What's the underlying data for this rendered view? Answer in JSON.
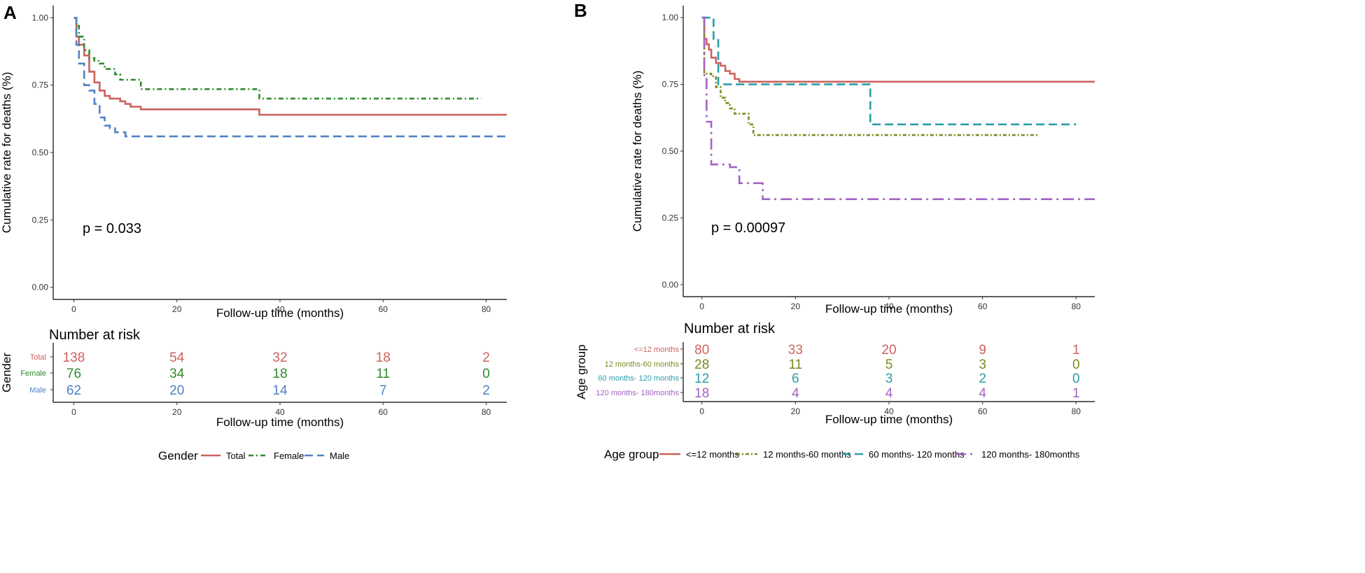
{
  "chart_data": [
    {
      "type": "line",
      "panel": "A",
      "ylabel": "Cumulative rate for deaths (%)",
      "xlabel": "Follow-up time (months)",
      "xlim": [
        -4,
        84
      ],
      "ylim": [
        -0.045,
        1.045
      ],
      "xticks": [
        0,
        20,
        40,
        60,
        80
      ],
      "yticks": [
        0.0,
        0.25,
        0.5,
        0.75,
        1.0
      ],
      "ytick_labels": [
        "0.00",
        "0.25",
        "0.50",
        "0.75",
        "1.00"
      ],
      "pvalue": "p = 0.033",
      "legend_title": "Gender",
      "series": [
        {
          "name": "Total",
          "color": "#cc625e",
          "dash": "",
          "points": [
            [
              0,
              1.0
            ],
            [
              0.5,
              0.93
            ],
            [
              1,
              0.9
            ],
            [
              2,
              0.86
            ],
            [
              3,
              0.8
            ],
            [
              4,
              0.76
            ],
            [
              5,
              0.73
            ],
            [
              6,
              0.71
            ],
            [
              7,
              0.7
            ],
            [
              9,
              0.69
            ],
            [
              10,
              0.68
            ],
            [
              11,
              0.67
            ],
            [
              13,
              0.66
            ],
            [
              36,
              0.64
            ],
            [
              84,
              0.64
            ]
          ]
        },
        {
          "name": "Female",
          "color": "#2e8b2e",
          "dash": "7,4,2,4",
          "points": [
            [
              0,
              1.0
            ],
            [
              0.5,
              0.97
            ],
            [
              1,
              0.93
            ],
            [
              2,
              0.88
            ],
            [
              3,
              0.85
            ],
            [
              4,
              0.84
            ],
            [
              5,
              0.83
            ],
            [
              6,
              0.81
            ],
            [
              8,
              0.79
            ],
            [
              9,
              0.77
            ],
            [
              13,
              0.735
            ],
            [
              36,
              0.7
            ],
            [
              79,
              0.7
            ]
          ]
        },
        {
          "name": "Male",
          "color": "#4f82c4",
          "dash": "12,6",
          "points": [
            [
              0,
              1.0
            ],
            [
              0.5,
              0.9
            ],
            [
              1,
              0.83
            ],
            [
              2,
              0.75
            ],
            [
              3,
              0.73
            ],
            [
              4,
              0.68
            ],
            [
              5,
              0.63
            ],
            [
              6,
              0.6
            ],
            [
              7,
              0.59
            ],
            [
              8,
              0.575
            ],
            [
              10,
              0.56
            ],
            [
              84,
              0.56
            ]
          ]
        }
      ],
      "risk_table": {
        "heading": "Number at risk",
        "ylabel": "Gender",
        "xlabel": "Follow-up time (months)",
        "times": [
          0,
          20,
          40,
          60,
          80
        ],
        "rows": [
          {
            "label": "Total",
            "color": "#cc625e",
            "values": [
              "138",
              "54",
              "32",
              "18",
              "2"
            ]
          },
          {
            "label": "Female",
            "color": "#2e8b2e",
            "values": [
              "76",
              "34",
              "18",
              "11",
              "0"
            ]
          },
          {
            "label": "Male",
            "color": "#4f82c4",
            "values": [
              "62",
              "20",
              "14",
              "7",
              "2"
            ]
          }
        ]
      }
    },
    {
      "type": "line",
      "panel": "B",
      "ylabel": "Cumulative rate for deaths (%)",
      "xlabel": "Follow-up time (months)",
      "xlim": [
        -4,
        84
      ],
      "ylim": [
        -0.045,
        1.045
      ],
      "xticks": [
        0,
        20,
        40,
        60,
        80
      ],
      "yticks": [
        0.0,
        0.25,
        0.5,
        0.75,
        1.0
      ],
      "ytick_labels": [
        "0.00",
        "0.25",
        "0.50",
        "0.75",
        "1.00"
      ],
      "pvalue": "p = 0.00097",
      "legend_title": "Age group",
      "series": [
        {
          "name": "<=12 months",
          "color": "#cc625e",
          "dash": "",
          "points": [
            [
              0,
              1.0
            ],
            [
              0.5,
              0.92
            ],
            [
              1,
              0.9
            ],
            [
              1.5,
              0.88
            ],
            [
              2,
              0.85
            ],
            [
              3,
              0.83
            ],
            [
              4,
              0.82
            ],
            [
              5,
              0.8
            ],
            [
              6,
              0.79
            ],
            [
              7,
              0.77
            ],
            [
              8,
              0.76
            ],
            [
              84,
              0.76
            ]
          ]
        },
        {
          "name": "12 months-60 months",
          "color": "#7a8a1e",
          "dash": "5,3,2,3",
          "points": [
            [
              0,
              1.0
            ],
            [
              0.5,
              0.79
            ],
            [
              2,
              0.78
            ],
            [
              3,
              0.74
            ],
            [
              4,
              0.7
            ],
            [
              5,
              0.68
            ],
            [
              6,
              0.66
            ],
            [
              7,
              0.64
            ],
            [
              10,
              0.6
            ],
            [
              11,
              0.56
            ],
            [
              72,
              0.56
            ]
          ]
        },
        {
          "name": "60 months- 120 months",
          "color": "#2a9dab",
          "dash": "12,6",
          "points": [
            [
              0,
              1.0
            ],
            [
              2,
              1.0
            ],
            [
              2.5,
              0.92
            ],
            [
              3.5,
              0.75
            ],
            [
              36,
              0.6
            ],
            [
              80,
              0.6
            ]
          ]
        },
        {
          "name": "120 months- 180months",
          "color": "#a263c4",
          "dash": "16,6,3,6",
          "points": [
            [
              0,
              1.0
            ],
            [
              0.5,
              0.78
            ],
            [
              1,
              0.61
            ],
            [
              2,
              0.45
            ],
            [
              6,
              0.44
            ],
            [
              8,
              0.38
            ],
            [
              13,
              0.32
            ],
            [
              84,
              0.32
            ]
          ]
        }
      ],
      "risk_table": {
        "heading": "Number at risk",
        "ylabel": "Age group",
        "xlabel": "Follow-up time (months)",
        "times": [
          0,
          20,
          40,
          60,
          80
        ],
        "rows": [
          {
            "label": "<=12 months",
            "color": "#cc625e",
            "values": [
              "80",
              "33",
              "20",
              "9",
              "1"
            ]
          },
          {
            "label": "12 months-60 months",
            "color": "#7a8a1e",
            "values": [
              "28",
              "11",
              "5",
              "3",
              "0"
            ]
          },
          {
            "label": "60 months- 120 months",
            "color": "#2a9dab",
            "values": [
              "12",
              "6",
              "3",
              "2",
              "0"
            ]
          },
          {
            "label": "120 months- 180months",
            "color": "#a263c4",
            "values": [
              "18",
              "4",
              "4",
              "4",
              "1"
            ]
          }
        ]
      }
    }
  ]
}
